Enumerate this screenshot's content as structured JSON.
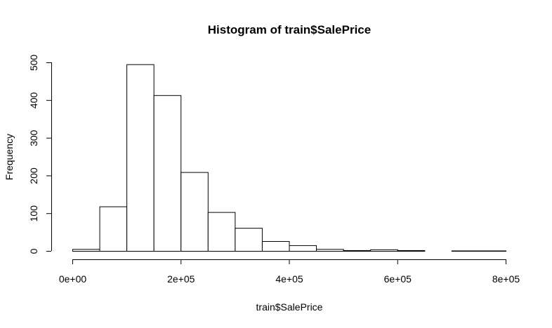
{
  "chart_data": {
    "type": "bar",
    "title": "Histogram of train$SalePrice",
    "xlabel": "train$SalePrice",
    "ylabel": "Frequency",
    "bin_edges": [
      0,
      50000,
      100000,
      150000,
      200000,
      250000,
      300000,
      350000,
      400000,
      450000,
      500000,
      550000,
      600000,
      650000,
      700000,
      750000,
      800000
    ],
    "values": [
      5,
      118,
      495,
      413,
      209,
      103,
      61,
      26,
      15,
      5,
      2,
      4,
      2,
      0,
      1,
      1
    ],
    "xlim": [
      0,
      800000
    ],
    "ylim": [
      0,
      500
    ],
    "x_ticks": [
      0,
      200000,
      400000,
      600000,
      800000
    ],
    "x_tick_labels": [
      "0e+00",
      "2e+05",
      "4e+05",
      "6e+05",
      "8e+05"
    ],
    "y_ticks": [
      0,
      100,
      200,
      300,
      400,
      500
    ],
    "y_tick_labels": [
      "0",
      "100",
      "200",
      "300",
      "400",
      "500"
    ],
    "grid": false,
    "bar_fill": "#ffffff",
    "bar_stroke": "#000000"
  }
}
